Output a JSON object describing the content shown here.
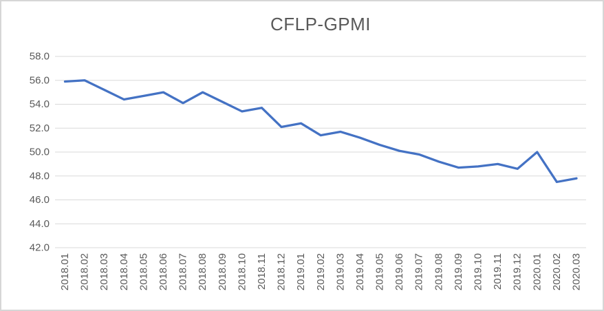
{
  "window": {
    "background_color": "#ffffff",
    "frame_border_color": "#d6d6d6"
  },
  "chart_data": {
    "type": "line",
    "title": "CFLP-GPMI",
    "categories": [
      "2018.01",
      "2018.02",
      "2018.03",
      "2018.04",
      "2018.05",
      "2018.06",
      "2018.07",
      "2018.08",
      "2018.09",
      "2018.10",
      "2018.11",
      "2018.12",
      "2019.01",
      "2019.02",
      "2019.03",
      "2019.04",
      "2019.05",
      "2019.06",
      "2019.07",
      "2019.08",
      "2019.09",
      "2019.10",
      "2019.11",
      "2019.12",
      "2020.01",
      "2020.02",
      "2020.03"
    ],
    "series": [
      {
        "name": "CFLP-GPMI",
        "color": "#4472C4",
        "values": [
          55.9,
          56.0,
          55.2,
          54.4,
          54.7,
          55.0,
          54.1,
          55.0,
          54.2,
          53.4,
          53.7,
          52.1,
          52.4,
          51.4,
          51.7,
          51.2,
          50.6,
          50.1,
          49.8,
          49.2,
          48.7,
          48.8,
          49.0,
          48.6,
          50.0,
          47.5,
          47.8
        ]
      }
    ],
    "y_axis": {
      "min": 42.0,
      "max": 58.0,
      "step": 2.0,
      "tick_labels": [
        "58.0",
        "56.0",
        "54.0",
        "52.0",
        "50.0",
        "48.0",
        "46.0",
        "44.0",
        "42.0"
      ]
    },
    "x_axis": {
      "label_rotation_degrees": -90
    },
    "grid": true,
    "legend_position": "none",
    "gridline_color": "#d9d9d9",
    "axis_text_color": "#595959",
    "title_color": "#595959"
  }
}
